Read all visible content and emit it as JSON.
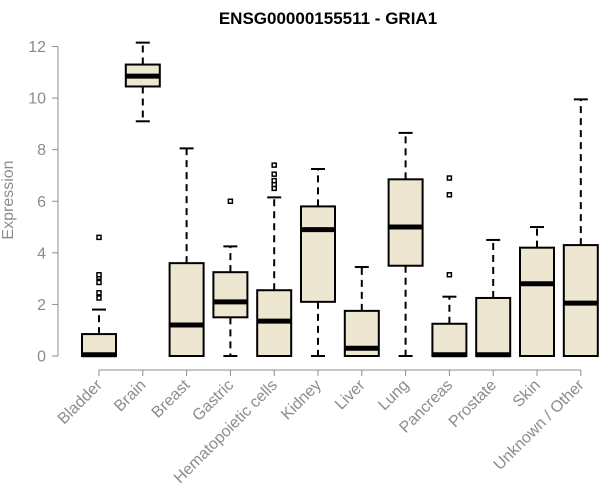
{
  "chart_data": {
    "type": "boxplot",
    "title": "ENSG00000155511 - GRIA1",
    "xlabel": "",
    "ylabel": "Expression",
    "ylim": [
      0,
      12
    ],
    "yticks": [
      "0",
      "2",
      "4",
      "6",
      "8",
      "10",
      "12"
    ],
    "box_fill": "#ede6d0",
    "box_stroke": "#000000",
    "axis_color": "#8c8c8c",
    "categories": [
      "Bladder",
      "Brain",
      "Breast",
      "Gastric",
      "Hematopoietic cells",
      "Kidney",
      "Liver",
      "Lung",
      "Pancreas",
      "Prostate",
      "Skin",
      "Unknown / Other"
    ],
    "boxes": [
      {
        "label": "Bladder",
        "whisker_low": 0,
        "q1": 0,
        "median": 0.05,
        "q3": 0.85,
        "whisker_high": 1.8,
        "outliers": [
          2.25,
          2.45,
          2.85,
          3.05,
          3.15,
          4.6
        ]
      },
      {
        "label": "Brain",
        "whisker_low": 9.1,
        "q1": 10.45,
        "median": 10.85,
        "q3": 11.3,
        "whisker_high": 12.15,
        "outliers": []
      },
      {
        "label": "Breast",
        "whisker_low": 0,
        "q1": 0,
        "median": 1.2,
        "q3": 3.6,
        "whisker_high": 8.05,
        "outliers": []
      },
      {
        "label": "Gastric",
        "whisker_low": 0,
        "q1": 1.5,
        "median": 2.1,
        "q3": 3.25,
        "whisker_high": 4.25,
        "outliers": [
          6.0
        ]
      },
      {
        "label": "Hematopoietic cells",
        "whisker_low": 0,
        "q1": 0,
        "median": 1.35,
        "q3": 2.55,
        "whisker_high": 6.15,
        "outliers": [
          6.5,
          6.65,
          6.8,
          7.05,
          7.4
        ]
      },
      {
        "label": "Kidney",
        "whisker_low": 0,
        "q1": 2.1,
        "median": 4.9,
        "q3": 5.8,
        "whisker_high": 7.25,
        "outliers": []
      },
      {
        "label": "Liver",
        "whisker_low": 0,
        "q1": 0,
        "median": 0.3,
        "q3": 1.75,
        "whisker_high": 3.45,
        "outliers": []
      },
      {
        "label": "Lung",
        "whisker_low": 0,
        "q1": 3.5,
        "median": 5.0,
        "q3": 6.85,
        "whisker_high": 8.65,
        "outliers": []
      },
      {
        "label": "Pancreas",
        "whisker_low": 0,
        "q1": 0,
        "median": 0.05,
        "q3": 1.25,
        "whisker_high": 2.3,
        "outliers": [
          3.15,
          6.25,
          6.9
        ]
      },
      {
        "label": "Prostate",
        "whisker_low": 0,
        "q1": 0,
        "median": 0.05,
        "q3": 2.25,
        "whisker_high": 4.5,
        "outliers": []
      },
      {
        "label": "Skin",
        "whisker_low": 0,
        "q1": 0,
        "median": 2.8,
        "q3": 4.2,
        "whisker_high": 5.0,
        "outliers": []
      },
      {
        "label": "Unknown / Other",
        "whisker_low": 0,
        "q1": 0,
        "median": 2.05,
        "q3": 4.3,
        "whisker_high": 9.95,
        "outliers": []
      }
    ]
  }
}
